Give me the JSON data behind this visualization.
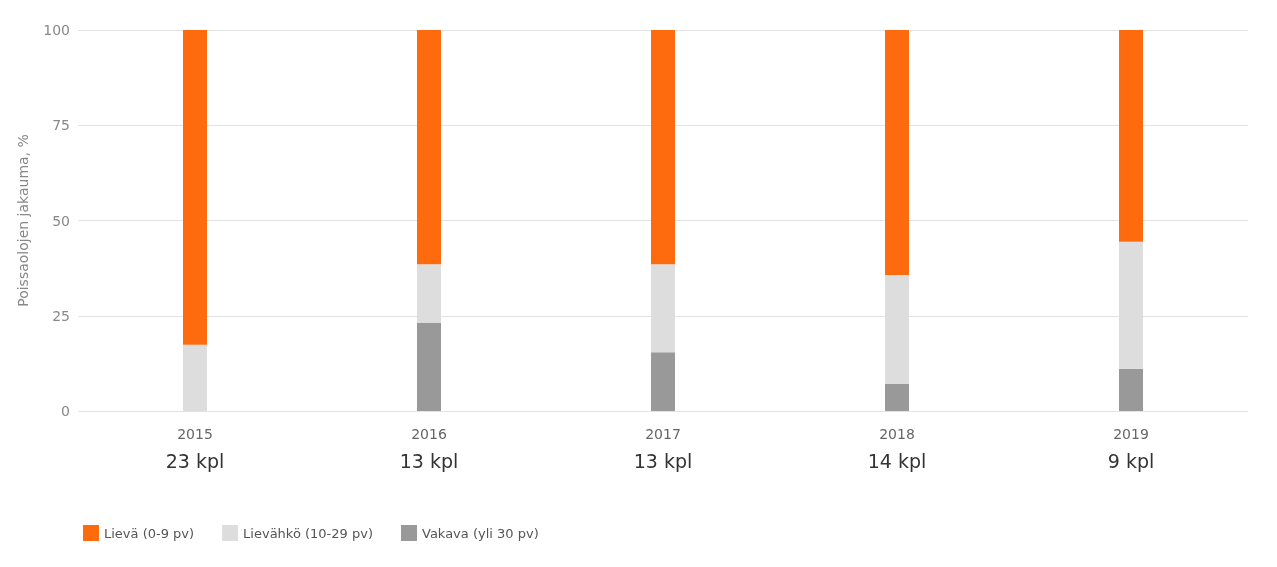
{
  "chart_data": {
    "type": "bar",
    "stacked": true,
    "ylabel": "Poissaolojen jakauma, %",
    "categories": [
      "2015",
      "2016",
      "2017",
      "2018",
      "2019"
    ],
    "annotations": [
      "23 kpl",
      "13 kpl",
      "13 kpl",
      "14 kpl",
      "9 kpl"
    ],
    "series": [
      {
        "name": "Vakava (yli 30 pv)",
        "color": "#999999",
        "values": [
          0,
          23.1,
          15.4,
          7.1,
          11.1
        ]
      },
      {
        "name": "Lievähkö (10-29 pv)",
        "color": "#dddddd",
        "values": [
          17.4,
          15.4,
          23.1,
          28.6,
          33.3
        ]
      },
      {
        "name": "Lievä (0-9 pv)",
        "color": "#fe6b0f",
        "values": [
          82.6,
          61.5,
          61.5,
          64.3,
          55.6
        ]
      }
    ],
    "ylim": [
      0,
      100
    ],
    "yticks": [
      0,
      25,
      50,
      75,
      100
    ],
    "grid": "y",
    "legend": "bottom left"
  }
}
